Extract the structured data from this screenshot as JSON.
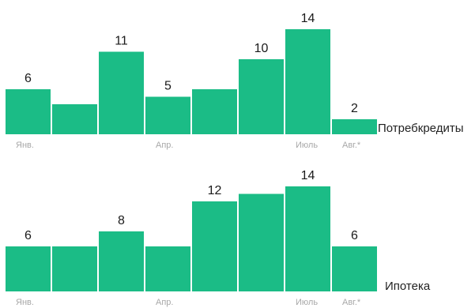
{
  "colors": {
    "bar": "#1bbc86",
    "label": "#1a1a1a",
    "tick": "#a8a8a8"
  },
  "chart_data": [
    {
      "type": "bar",
      "series_name": "Потребкредиты",
      "categories": [
        "Янв.",
        "",
        "",
        "Апр.",
        "",
        "",
        "Июль",
        "Авг.*"
      ],
      "values": [
        6,
        4,
        11,
        5,
        6,
        10,
        14,
        2
      ],
      "data_labels": [
        "6",
        "",
        "11",
        "5",
        "",
        "10",
        "14",
        "2"
      ]
    },
    {
      "type": "bar",
      "series_name": "Ипотека",
      "categories": [
        "Янв.",
        "",
        "",
        "Апр.",
        "",
        "",
        "Июль",
        "Авг.*"
      ],
      "values": [
        6,
        6,
        8,
        6,
        12,
        13,
        14,
        6
      ],
      "data_labels": [
        "6",
        "",
        "8",
        "",
        "12",
        "",
        "14",
        "6"
      ]
    }
  ]
}
